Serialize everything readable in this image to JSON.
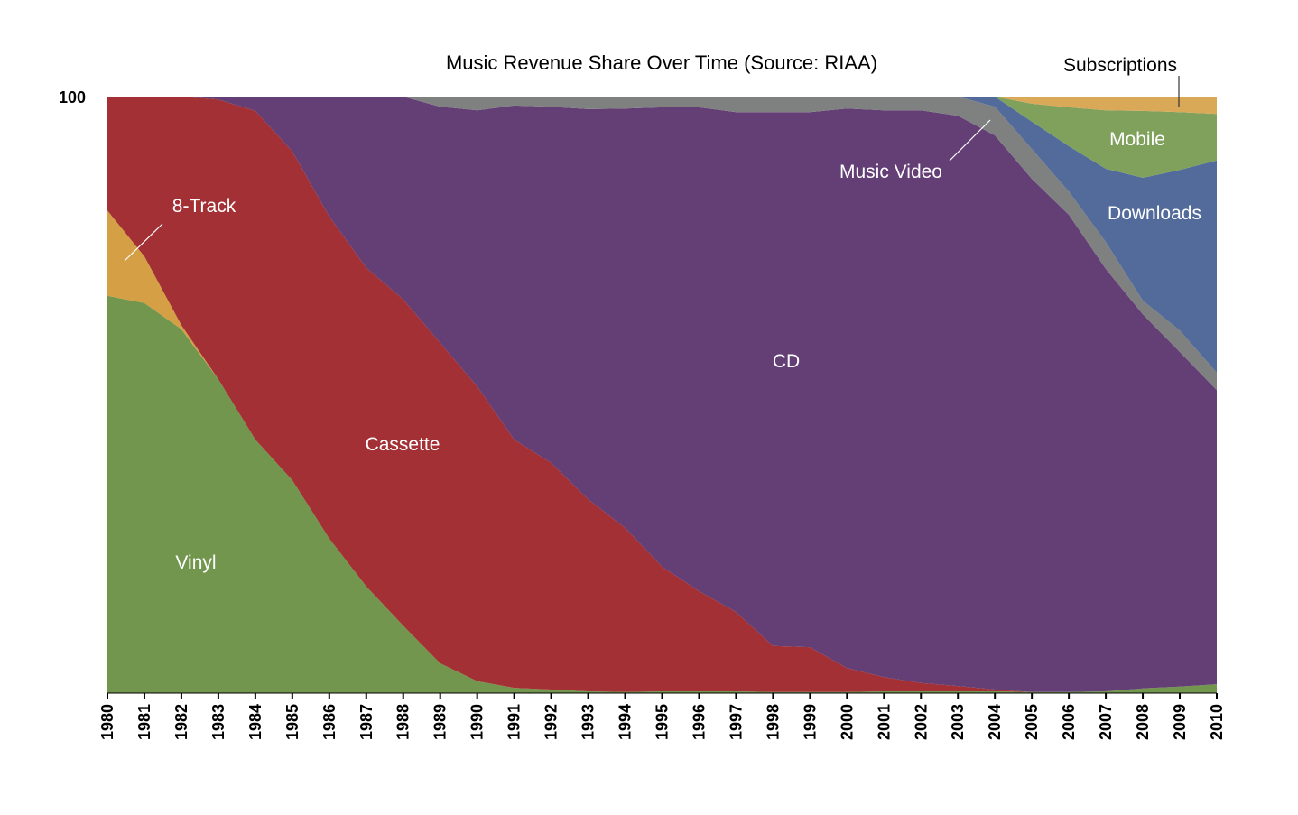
{
  "chart_data": {
    "type": "area",
    "stacked": true,
    "normalized": true,
    "title": "Music Revenue Share Over Time (Source: RIAA)",
    "ylim": [
      0,
      100
    ],
    "y_tick_labels": [
      "100"
    ],
    "x": [
      1980,
      1981,
      1982,
      1983,
      1984,
      1985,
      1986,
      1987,
      1988,
      1989,
      1990,
      1991,
      1992,
      1993,
      1994,
      1995,
      1996,
      1997,
      1998,
      1999,
      2000,
      2001,
      2002,
      2003,
      2004,
      2005,
      2006,
      2007,
      2008,
      2009,
      2010
    ],
    "grid": false,
    "legend": "none (inline labels)",
    "series": [
      {
        "name": "Vinyl",
        "color": "#72964d",
        "values": [
          66.6,
          65.4,
          61,
          52.6,
          42.5,
          35.7,
          25.9,
          17.9,
          11.3,
          5,
          2,
          0.9,
          0.6,
          0.3,
          0.2,
          0.3,
          0.3,
          0.3,
          0.2,
          0.2,
          0.2,
          0.3,
          0.3,
          0.3,
          0.3,
          0.2,
          0.2,
          0.3,
          0.8,
          1.1,
          1.5
        ]
      },
      {
        "name": "8-Track",
        "color": "#d49f45",
        "values": [
          14.3,
          7.8,
          0.7,
          0,
          0,
          0,
          0,
          0,
          0,
          0,
          0,
          0,
          0,
          0,
          0,
          0,
          0,
          0,
          0,
          0,
          0,
          0,
          0,
          0,
          0,
          0,
          0,
          0,
          0,
          0,
          0
        ]
      },
      {
        "name": "Cassette",
        "color": "#a33034",
        "values": [
          19.1,
          26.8,
          38.3,
          46.9,
          55.1,
          55.1,
          54,
          53.4,
          54.7,
          53.7,
          49.4,
          41.6,
          38,
          32.2,
          27.5,
          20.9,
          16.8,
          13.3,
          7.7,
          7.5,
          4,
          2.4,
          1.4,
          0.9,
          0.3,
          0,
          0,
          0,
          0,
          0,
          0
        ]
      },
      {
        "name": "CD",
        "color": "#643f75",
        "values": [
          0,
          0,
          0,
          0.5,
          2.4,
          9.2,
          20.1,
          28.7,
          34,
          39.6,
          46.3,
          56,
          59.7,
          65.4,
          70.3,
          77,
          81.1,
          83.8,
          89.5,
          89.7,
          93.8,
          95,
          96,
          95.6,
          92.9,
          86,
          80,
          70.8,
          62.7,
          56.1,
          49.3
        ]
      },
      {
        "name": "Music Video",
        "color": "#7f8180",
        "values": [
          0,
          0,
          0,
          0,
          0,
          0,
          0,
          0,
          0,
          1.7,
          2.3,
          1.5,
          1.7,
          2.1,
          2,
          1.8,
          1.8,
          2.6,
          2.6,
          2.6,
          2,
          2.3,
          2.3,
          3.2,
          4.8,
          5,
          3.9,
          4.5,
          2.3,
          3.6,
          2.9
        ]
      },
      {
        "name": "Downloads",
        "color": "#536b9b",
        "values": [
          0,
          0,
          0,
          0,
          0,
          0,
          0,
          0,
          0,
          0,
          0,
          0,
          0,
          0,
          0,
          0,
          0,
          0,
          0,
          0,
          0,
          0,
          0,
          0,
          1.7,
          4.6,
          7.6,
          12.3,
          20.6,
          26.9,
          35.6
        ]
      },
      {
        "name": "Mobile",
        "color": "#7fa15c",
        "values": [
          0,
          0,
          0,
          0,
          0,
          0,
          0,
          0,
          0,
          0,
          0,
          0,
          0,
          0,
          0,
          0,
          0,
          0,
          0,
          0,
          0,
          0,
          0,
          0,
          0,
          3,
          6.5,
          9.8,
          11.2,
          9.7,
          7.8
        ]
      },
      {
        "name": "Subscriptions",
        "color": "#d9a957",
        "values": [
          0,
          0,
          0,
          0,
          0,
          0,
          0,
          0,
          0,
          0,
          0,
          0,
          0,
          0,
          0,
          0,
          0,
          0,
          0,
          0,
          0,
          0,
          0,
          0,
          0,
          1.2,
          1.8,
          2.3,
          2.4,
          2.6,
          2.9
        ]
      }
    ]
  }
}
